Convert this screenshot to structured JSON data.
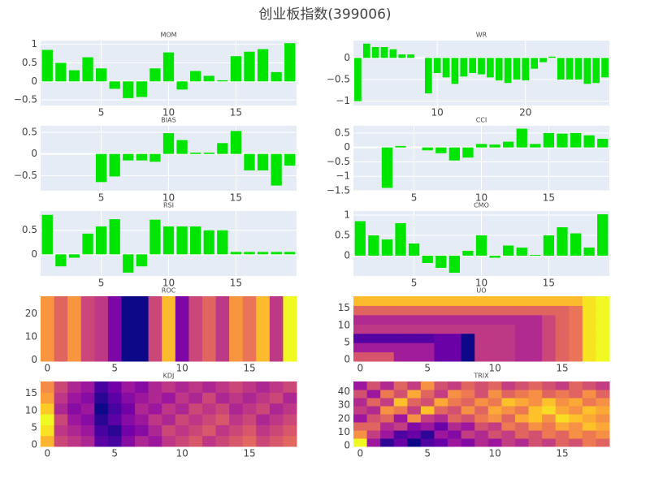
{
  "chart_data": {
    "title": "创业板指数(399006)",
    "colorscale": "Plasma",
    "charts": [
      {
        "type": "bar",
        "title": "MOM",
        "color": "#00e500",
        "grid": true,
        "x": [
          1,
          2,
          3,
          4,
          5,
          6,
          7,
          8,
          9,
          10,
          11,
          12,
          13,
          14,
          15,
          16,
          17,
          18,
          19
        ],
        "values": [
          0.85,
          0.5,
          0.3,
          0.65,
          0.35,
          -0.2,
          -0.45,
          -0.42,
          0.35,
          0.78,
          -0.22,
          0.28,
          0.15,
          0.03,
          0.68,
          0.8,
          0.87,
          0.25,
          1.03
        ],
        "xlim": [
          0.5,
          19.5
        ],
        "xticks": [
          5,
          10,
          15
        ],
        "ylim": [
          -0.65,
          1.1
        ],
        "yticks": [
          {
            "value": -0.5,
            "label": "−0.5"
          },
          0,
          0.5,
          1
        ]
      },
      {
        "type": "bar",
        "title": "BIAS",
        "color": "#00e500",
        "grid": true,
        "x": [
          1,
          2,
          3,
          4,
          5,
          6,
          7,
          8,
          9,
          10,
          11,
          12,
          13,
          14,
          15,
          16,
          17,
          18,
          19
        ],
        "values": [
          0,
          0,
          0,
          0,
          -0.65,
          -0.52,
          -0.15,
          -0.15,
          -0.18,
          0.48,
          0.32,
          0.03,
          0.03,
          0.25,
          0.53,
          -0.38,
          -0.38,
          -0.73,
          -0.27
        ],
        "xlim": [
          0.5,
          19.5
        ],
        "xticks": [
          5,
          10,
          15
        ],
        "ylim": [
          -0.85,
          0.65
        ],
        "yticks": [
          {
            "value": -0.5,
            "label": "−0.5"
          },
          0,
          0.5
        ]
      },
      {
        "type": "bar",
        "title": "RSI",
        "color": "#00e500",
        "grid": true,
        "x": [
          1,
          2,
          3,
          4,
          5,
          6,
          7,
          8,
          9,
          10,
          11,
          12,
          13,
          14,
          15,
          16,
          17,
          18,
          19
        ],
        "values": [
          0.82,
          -0.25,
          -0.07,
          0.43,
          0.58,
          0.73,
          -0.38,
          -0.25,
          0.72,
          0.58,
          0.58,
          0.58,
          0.5,
          0.5,
          0.05,
          0.05,
          0.05,
          0.05,
          0.05
        ],
        "xlim": [
          0.5,
          19.5
        ],
        "xticks": [
          5,
          10,
          15
        ],
        "ylim": [
          -0.45,
          0.9
        ],
        "yticks": [
          0,
          0.5
        ]
      },
      {
        "type": "heatmap",
        "title": "ROC",
        "z": [
          [
            0.75,
            0.6,
            0.75,
            0.5,
            0.45,
            0.25,
            0,
            0,
            0.5,
            0.85,
            0.25,
            0.5,
            0.6,
            0.45,
            0.75,
            0.65,
            0.85,
            0.45,
            1
          ]
        ],
        "xlim": [
          -0.5,
          18.5
        ],
        "xticks": [
          0,
          5,
          10,
          15
        ],
        "ylim": [
          -0.5,
          27.5
        ],
        "yticks": [
          0,
          10,
          20
        ]
      },
      {
        "type": "heatmap",
        "title": "KDJ",
        "z": [
          [
            0.8,
            0.5,
            0.45,
            0.4,
            0.2,
            0.15,
            0.3,
            0.4,
            0.35,
            0.45,
            0.5,
            0.55,
            0.45,
            0.5,
            0.55,
            0.6,
            0.5,
            0.55,
            0.6
          ],
          [
            0.9,
            0.45,
            0.4,
            0.35,
            0.15,
            0.1,
            0.25,
            0.3,
            0.4,
            0.5,
            0.45,
            0.5,
            0.55,
            0.45,
            0.5,
            0.55,
            0.45,
            0.5,
            0.55
          ],
          [
            0.95,
            0.5,
            0.35,
            0.3,
            0.1,
            0.2,
            0.3,
            0.35,
            0.45,
            0.4,
            0.5,
            0.45,
            0.5,
            0.55,
            0.45,
            0.5,
            0.4,
            0.45,
            0.5
          ],
          [
            0.85,
            0.4,
            0.3,
            0.35,
            0.05,
            0.15,
            0.25,
            0.4,
            0.35,
            0.45,
            0.4,
            0.5,
            0.45,
            0.5,
            0.4,
            0.45,
            0.5,
            0.4,
            0.45
          ],
          [
            0.75,
            0.45,
            0.35,
            0.3,
            0.1,
            0.2,
            0.3,
            0.35,
            0.4,
            0.35,
            0.45,
            0.4,
            0.5,
            0.4,
            0.45,
            0.4,
            0.45,
            0.5,
            0.4
          ],
          [
            0.7,
            0.5,
            0.4,
            0.35,
            0.15,
            0.25,
            0.35,
            0.3,
            0.4,
            0.45,
            0.4,
            0.45,
            0.4,
            0.45,
            0.5,
            0.45,
            0.4,
            0.45,
            0.5
          ]
        ],
        "xlim": [
          -0.5,
          18.5
        ],
        "xticks": [
          0,
          5,
          10,
          15
        ],
        "ylim": [
          -0.5,
          18.5
        ],
        "yticks": [
          0,
          5,
          10,
          15
        ]
      },
      {
        "type": "bar",
        "title": "WR",
        "color": "#00e500",
        "grid": true,
        "x": [
          1,
          2,
          3,
          4,
          5,
          6,
          7,
          8,
          9,
          10,
          11,
          12,
          13,
          14,
          15,
          16,
          17,
          18,
          19,
          20,
          21,
          22,
          23,
          24,
          25,
          26,
          27,
          28,
          29
        ],
        "values": [
          -1.0,
          0.33,
          0.25,
          0.25,
          0.2,
          0.08,
          0.08,
          0,
          -0.82,
          -0.35,
          -0.45,
          -0.6,
          -0.43,
          -0.35,
          -0.38,
          -0.45,
          -0.52,
          -0.58,
          -0.5,
          -0.52,
          -0.25,
          -0.1,
          0.03,
          -0.5,
          -0.5,
          -0.5,
          -0.6,
          -0.58,
          -0.45
        ],
        "xlim": [
          0.5,
          29.5
        ],
        "xticks": [
          10,
          20
        ],
        "ylim": [
          -1.1,
          0.4
        ],
        "yticks": [
          {
            "value": -1,
            "label": "−1"
          },
          {
            "value": -0.5,
            "label": "−0.5"
          },
          0
        ]
      },
      {
        "type": "bar",
        "title": "CCI",
        "color": "#00e500",
        "grid": true,
        "x": [
          1,
          2,
          3,
          4,
          5,
          6,
          7,
          8,
          9,
          10,
          11,
          12,
          13,
          14,
          15,
          16,
          17,
          18,
          19
        ],
        "values": [
          0,
          0,
          -1.4,
          0.05,
          0,
          -0.1,
          -0.2,
          -0.45,
          -0.35,
          0.12,
          0.1,
          0.2,
          0.65,
          0.12,
          0.5,
          0.48,
          0.5,
          0.42,
          0.3
        ],
        "xlim": [
          0.5,
          19.5
        ],
        "xticks": [
          5,
          10,
          15
        ],
        "ylim": [
          -1.5,
          0.75
        ],
        "yticks": [
          {
            "value": -1.5,
            "label": "−1.5"
          },
          {
            "value": -1,
            "label": "−1"
          },
          {
            "value": -0.5,
            "label": "−0.5"
          },
          0,
          0.5
        ]
      },
      {
        "type": "bar",
        "title": "CMO",
        "color": "#00e500",
        "grid": true,
        "x": [
          1,
          2,
          3,
          4,
          5,
          6,
          7,
          8,
          9,
          10,
          11,
          12,
          13,
          14,
          15,
          16,
          17,
          18,
          19
        ],
        "values": [
          0.85,
          0.5,
          0.4,
          0.8,
          0.3,
          -0.18,
          -0.3,
          -0.42,
          0.12,
          0.5,
          -0.05,
          0.25,
          0.2,
          0.02,
          0.5,
          0.7,
          0.55,
          0.2,
          1.02
        ],
        "xlim": [
          0.5,
          19.5
        ],
        "xticks": [
          5,
          10,
          15
        ],
        "ylim": [
          -0.5,
          1.1
        ],
        "yticks": [
          0,
          0.5,
          1
        ]
      },
      {
        "type": "heatmap",
        "title": "UO",
        "z": [
          [
            0.55,
            0.55,
            0.55,
            0.35,
            0.35,
            0.35,
            0.2,
            0.2,
            0,
            0.45,
            0.45,
            0.45,
            0.4,
            0.4,
            0.5,
            0.6,
            0.65,
            0.95,
            1
          ],
          [
            0.35,
            0.35,
            0.35,
            0.35,
            0.35,
            0.35,
            0.2,
            0.2,
            0,
            0.45,
            0.45,
            0.45,
            0.4,
            0.4,
            0.5,
            0.6,
            0.65,
            0.95,
            1
          ],
          [
            0.15,
            0.15,
            0.15,
            0.15,
            0.15,
            0.15,
            0.2,
            0.2,
            0,
            0.45,
            0.45,
            0.45,
            0.4,
            0.4,
            0.5,
            0.6,
            0.65,
            0.95,
            1
          ],
          [
            0.45,
            0.45,
            0.45,
            0.45,
            0.45,
            0.45,
            0.45,
            0.45,
            0.45,
            0.45,
            0.45,
            0.45,
            0.4,
            0.4,
            0.5,
            0.6,
            0.65,
            0.95,
            1
          ],
          [
            0.4,
            0.4,
            0.4,
            0.4,
            0.4,
            0.4,
            0.4,
            0.4,
            0.4,
            0.4,
            0.4,
            0.4,
            0.4,
            0.4,
            0.5,
            0.6,
            0.65,
            0.95,
            1
          ],
          [
            0.6,
            0.6,
            0.6,
            0.6,
            0.6,
            0.6,
            0.6,
            0.6,
            0.6,
            0.6,
            0.6,
            0.6,
            0.6,
            0.6,
            0.6,
            0.6,
            0.65,
            0.95,
            1
          ],
          [
            0.85,
            0.85,
            0.85,
            0.85,
            0.85,
            0.85,
            0.85,
            0.85,
            0.85,
            0.85,
            0.85,
            0.85,
            0.85,
            0.85,
            0.85,
            0.85,
            0.85,
            0.95,
            1
          ]
        ],
        "xlim": [
          -0.5,
          18.5
        ],
        "xticks": [
          0,
          5,
          10,
          15
        ],
        "ylim": [
          -0.5,
          18.5
        ],
        "yticks": [
          0,
          5,
          10,
          15
        ]
      },
      {
        "type": "heatmap",
        "title": "TRIX",
        "z": [
          [
            0.8,
            0.3,
            0.1,
            0.2,
            0.05,
            0.15,
            0.2,
            0.3,
            0.25,
            0.35,
            0.3,
            0.4,
            0.35,
            0.45,
            0.4,
            0.5,
            0.45,
            0.55,
            0.5
          ],
          [
            0.6,
            0.4,
            0.3,
            0.15,
            0.2,
            0.1,
            0.3,
            0.25,
            0.4,
            0.35,
            0.45,
            0.4,
            0.5,
            0.45,
            0.55,
            0.5,
            0.6,
            0.55,
            0.6
          ],
          [
            0.5,
            0.5,
            0.35,
            0.4,
            0.25,
            0.3,
            0.2,
            0.35,
            0.3,
            0.45,
            0.4,
            0.55,
            0.5,
            0.6,
            0.55,
            0.65,
            0.6,
            0.7,
            0.65
          ],
          [
            0.3,
            0.45,
            0.5,
            0.3,
            0.6,
            0.4,
            0.35,
            0.5,
            0.45,
            0.55,
            0.6,
            0.5,
            0.65,
            0.7,
            0.6,
            0.75,
            0.7,
            0.65,
            0.6
          ],
          [
            0.4,
            0.35,
            0.6,
            0.55,
            0.4,
            0.7,
            0.5,
            0.45,
            0.6,
            0.5,
            0.65,
            0.6,
            0.55,
            0.7,
            0.75,
            0.65,
            0.6,
            0.7,
            0.65
          ],
          [
            0.35,
            0.5,
            0.4,
            0.7,
            0.5,
            0.45,
            0.65,
            0.55,
            0.5,
            0.6,
            0.55,
            0.7,
            0.65,
            0.6,
            0.7,
            0.6,
            0.65,
            0.55,
            0.6
          ],
          [
            0.45,
            0.3,
            0.55,
            0.45,
            0.65,
            0.5,
            0.4,
            0.6,
            0.55,
            0.45,
            0.6,
            0.5,
            0.55,
            0.6,
            0.5,
            0.55,
            0.5,
            0.6,
            0.5
          ],
          [
            0.3,
            0.45,
            0.35,
            0.5,
            0.4,
            0.6,
            0.45,
            0.4,
            0.5,
            0.45,
            0.5,
            0.4,
            0.45,
            0.5,
            0.45,
            0.4,
            0.5,
            0.45,
            0.4
          ]
        ],
        "xlim": [
          -0.5,
          18.5
        ],
        "xticks": [
          0,
          5,
          10,
          15
        ],
        "ylim": [
          -0.5,
          47.5
        ],
        "yticks": [
          0,
          10,
          20,
          30,
          40
        ]
      }
    ]
  }
}
